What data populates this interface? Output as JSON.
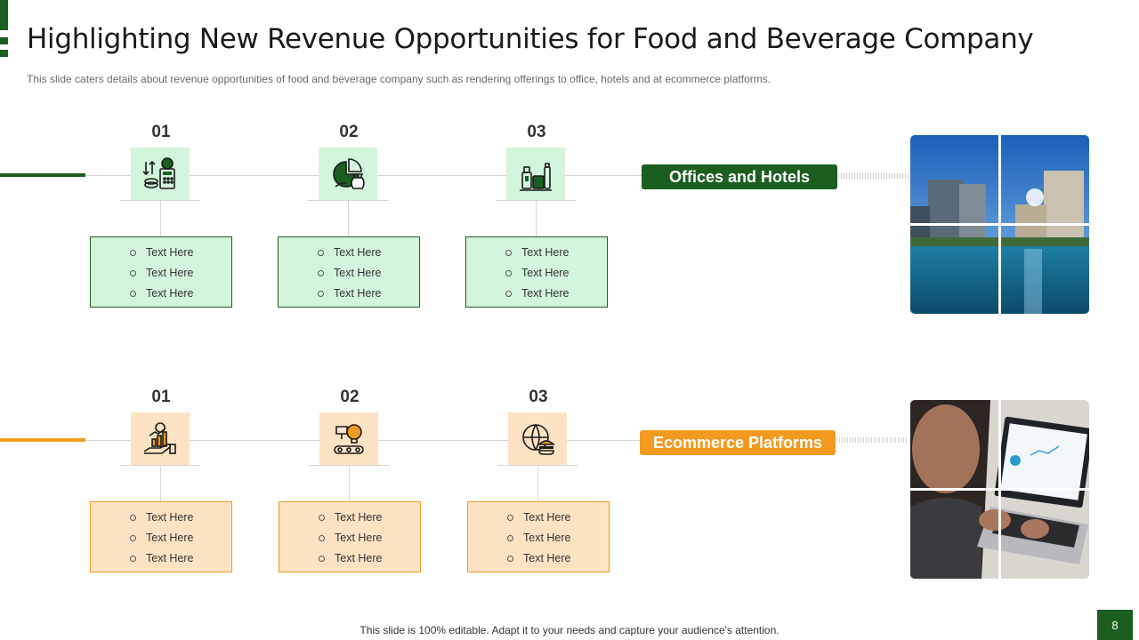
{
  "slide": {
    "title": "Highlighting New Revenue Opportunities for Food and Beverage Company",
    "subtitle": "This slide caters details about revenue  opportunities of food and beverage  company such as rendering offerings  to office, hotels and at ecommerce platforms.",
    "footer": "This slide is 100% editable. Adapt it to your needs and capture your audience's attention.",
    "page_number": "8"
  },
  "colors": {
    "green": "#1b5e20",
    "light_green": "#d3f5dc",
    "orange": "#f29a1f",
    "light_orange": "#fde3c3"
  },
  "sections": [
    {
      "label": "Offices and Hotels",
      "photo": "city-waterfront-photo",
      "items": [
        {
          "number": "01",
          "icon": "finance-calculator-icon",
          "bullets": [
            "Text Here",
            "Text Here",
            "Text Here"
          ]
        },
        {
          "number": "02",
          "icon": "pie-chart-money-bag-icon",
          "bullets": [
            "Text Here",
            "Text Here",
            "Text Here"
          ]
        },
        {
          "number": "03",
          "icon": "food-products-icon",
          "bullets": [
            "Text Here",
            "Text Here",
            "Text Here"
          ]
        }
      ]
    },
    {
      "label": "Ecommerce Platforms",
      "photo": "person-laptop-photo",
      "items": [
        {
          "number": "01",
          "icon": "hand-growth-chart-icon",
          "bullets": [
            "Text Here",
            "Text Here",
            "Text Here"
          ]
        },
        {
          "number": "02",
          "icon": "idea-production-icon",
          "bullets": [
            "Text Here",
            "Text Here",
            "Text Here"
          ]
        },
        {
          "number": "03",
          "icon": "global-food-icon",
          "bullets": [
            "Text Here",
            "Text Here",
            "Text Here"
          ]
        }
      ]
    }
  ]
}
